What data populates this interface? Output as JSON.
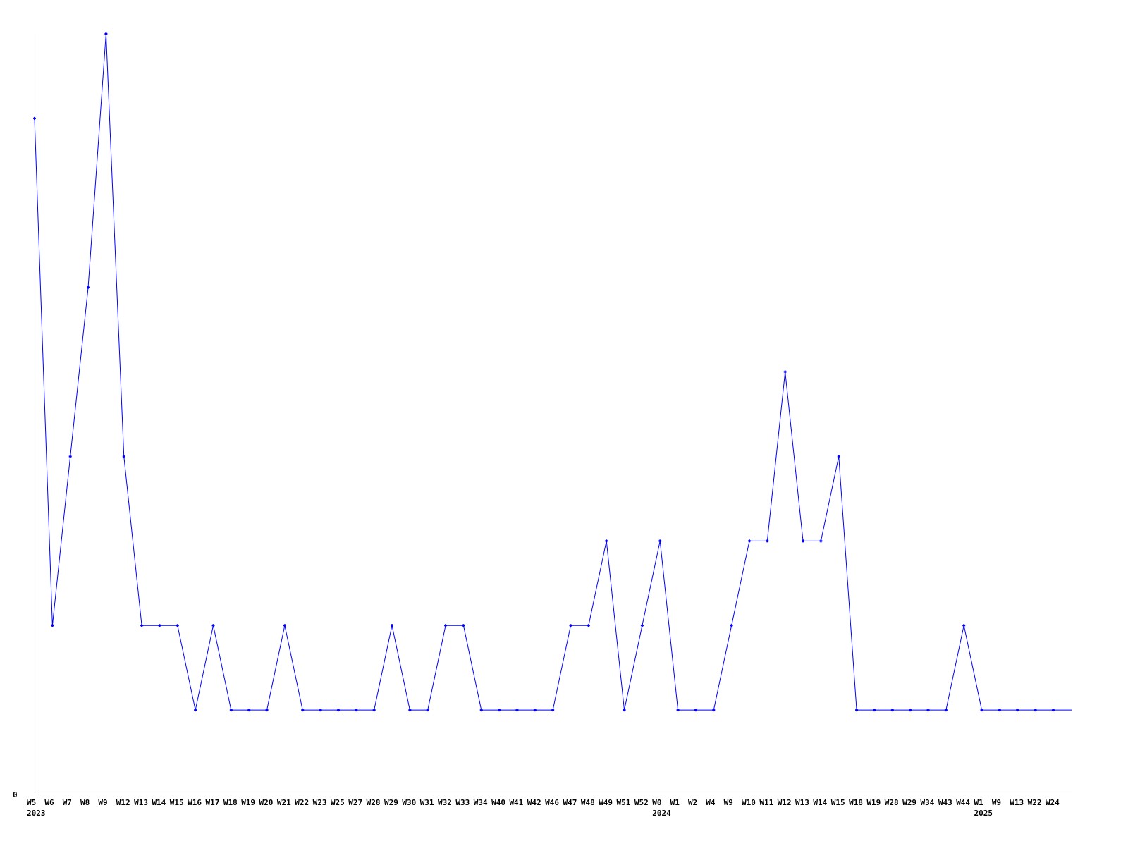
{
  "chart_data": {
    "type": "line",
    "title": "",
    "xlabel": "",
    "ylabel": "",
    "y_tick_labels": [
      "0"
    ],
    "ylim": [
      0,
      9
    ],
    "grid": false,
    "line_color": "#0000ff",
    "categories": [
      "W5",
      "W6",
      "W7",
      "W8",
      "W9",
      "W12",
      "W13",
      "W14",
      "W15",
      "W16",
      "W17",
      "W18",
      "W19",
      "W20",
      "W21",
      "W22",
      "W23",
      "W25",
      "W27",
      "W28",
      "W29",
      "W30",
      "W31",
      "W32",
      "W33",
      "W34",
      "W40",
      "W41",
      "W42",
      "W46",
      "W47",
      "W48",
      "W49",
      "W51",
      "W52",
      "W0",
      "W1",
      "W2",
      "W4",
      "W9",
      "W10",
      "W11",
      "W12",
      "W13",
      "W14",
      "W15",
      "W18",
      "W19",
      "W28",
      "W29",
      "W34",
      "W43",
      "W44",
      "W1",
      "W9",
      "W13",
      "W22",
      "W24"
    ],
    "year_labels": [
      {
        "index": 0,
        "label": "2023"
      },
      {
        "index": 35,
        "label": "2024"
      },
      {
        "index": 53,
        "label": "2025"
      }
    ],
    "values": [
      8,
      2,
      4,
      6,
      9,
      4,
      2,
      2,
      2,
      1,
      2,
      1,
      1,
      1,
      2,
      1,
      1,
      1,
      1,
      1,
      2,
      1,
      1,
      2,
      2,
      1,
      1,
      1,
      1,
      1,
      2,
      2,
      3,
      1,
      2,
      3,
      1,
      1,
      1,
      2,
      3,
      3,
      5,
      3,
      3,
      4,
      1,
      1,
      1,
      1,
      1,
      1,
      2,
      1,
      1,
      1,
      1,
      1
    ]
  }
}
